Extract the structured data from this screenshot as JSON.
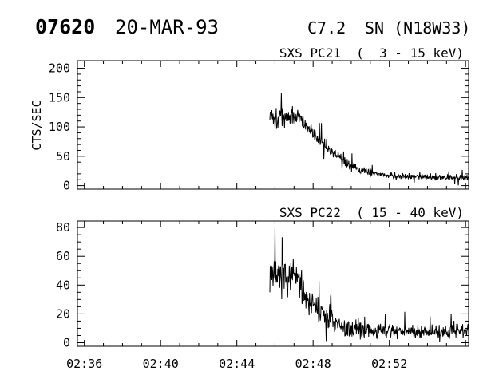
{
  "header": {
    "event_number": "07620",
    "date": "20-MAR-93",
    "goes_class": "C7.2",
    "flare_type_location": "SN (N18W33)"
  },
  "time_axis": {
    "tick_labels": [
      "02:36",
      "02:40",
      "02:44",
      "02:48",
      "02:52"
    ],
    "label_minutes": [
      0,
      4,
      8,
      12,
      16
    ],
    "minor_step_minutes": 1,
    "major_step_minutes": 4,
    "range_minutes": [
      -0.364,
      20.16
    ]
  },
  "chart_data": [
    {
      "type": "line",
      "title": "SXS PC21  (  3 - 15 keV)",
      "ylabel": "CTS/SEC",
      "ylim": [
        0,
        200
      ],
      "y_major_ticks": [
        0,
        50,
        100,
        150,
        200
      ],
      "y_tick_labels": [
        "0",
        "50",
        "100",
        "150",
        "200"
      ],
      "y_minor_step": 10,
      "grid": false,
      "legend": "none",
      "color": "#000000",
      "seed": 1337,
      "series": [
        {
          "name": "PC21",
          "note": "noisy count-rate trace; keypoints are [minutes_after_02:36, mean_cts_per_sec, noise_half_range]",
          "envelope_keypoints": [
            [
              9.73,
              124,
              16
            ],
            [
              10.1,
              114,
              17
            ],
            [
              10.5,
              116,
              18
            ],
            [
              10.9,
              120,
              16
            ],
            [
              11.3,
              112,
              15
            ],
            [
              11.6,
              104,
              13
            ],
            [
              11.9,
              95,
              12
            ],
            [
              12.4,
              76,
              11
            ],
            [
              12.9,
              60,
              10
            ],
            [
              13.4,
              47,
              9
            ],
            [
              13.9,
              35,
              8
            ],
            [
              14.4,
              27,
              7
            ],
            [
              15.0,
              21,
              6
            ],
            [
              15.7,
              18,
              5.5
            ],
            [
              16.5,
              16,
              5
            ],
            [
              17.5,
              15,
              5
            ],
            [
              18.5,
              14,
              4.5
            ],
            [
              19.5,
              14,
              4.5
            ],
            [
              20.16,
              15,
              5
            ]
          ]
        }
      ]
    },
    {
      "type": "line",
      "title": "SXS PC22  ( 15 - 40 keV)",
      "ylabel": "",
      "ylim": [
        0,
        80
      ],
      "y_major_ticks": [
        0,
        20,
        40,
        60,
        80
      ],
      "y_tick_labels": [
        "0",
        "20",
        "40",
        "60",
        "80"
      ],
      "y_minor_step": 5,
      "grid": false,
      "legend": "none",
      "color": "#000000",
      "seed": 7,
      "series": [
        {
          "name": "PC22",
          "note": "noisy count-rate trace; keypoints are [minutes_after_02:36, mean_cts_per_sec, noise_half_range]",
          "envelope_keypoints": [
            [
              9.73,
              50,
              13
            ],
            [
              10.1,
              46,
              12
            ],
            [
              10.5,
              44,
              12
            ],
            [
              10.9,
              47,
              12
            ],
            [
              11.3,
              41,
              11
            ],
            [
              11.6,
              34,
              10
            ],
            [
              12.0,
              26,
              9
            ],
            [
              12.4,
              21,
              8
            ],
            [
              12.9,
              15,
              7
            ],
            [
              13.4,
              11,
              6
            ],
            [
              14.0,
              9,
              5.5
            ],
            [
              15.0,
              8,
              5
            ],
            [
              16.5,
              8,
              5
            ],
            [
              18.0,
              8,
              4.5
            ],
            [
              19.0,
              8,
              4.5
            ],
            [
              20.16,
              8.5,
              5
            ]
          ]
        }
      ]
    }
  ]
}
